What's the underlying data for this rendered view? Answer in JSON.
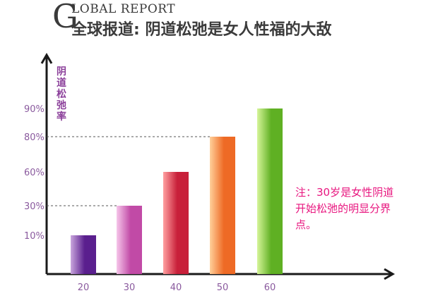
{
  "header": {
    "brand_letter": "G",
    "brand_rest": "LOBAL REPORT",
    "headline": "全球报道: 阴道松弛是女人性福的大敌"
  },
  "note": {
    "text": "注：30岁是女性阴道开始松弛的明显分界点。"
  },
  "chart_data": {
    "type": "bar",
    "title": "",
    "xlabel": "",
    "ylabel": "阴道松弛率",
    "categories": [
      "20",
      "30",
      "40",
      "50",
      "60"
    ],
    "values": [
      10,
      30,
      60,
      80,
      90
    ],
    "y_tick_labels": [
      "10%",
      "30%",
      "60%",
      "80%",
      "90%"
    ],
    "y_tick_values": [
      10,
      30,
      60,
      80,
      90
    ],
    "reference_lines": [
      30,
      80
    ],
    "grid": false,
    "bar_gradients": [
      [
        "#c9a6dd",
        "#5a1f8e"
      ],
      [
        "#f6c6ea",
        "#c14aa6"
      ],
      [
        "#ffa0a0",
        "#c8203a"
      ],
      [
        "#ffd09a",
        "#ee6a25"
      ],
      [
        "#d6f59a",
        "#5fb023"
      ]
    ],
    "axis_color": "#1a1a1a",
    "tick_color": "#8a5a9e",
    "note_color": "#e8167f"
  }
}
